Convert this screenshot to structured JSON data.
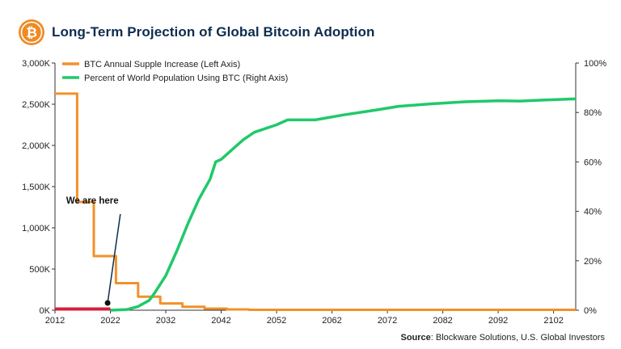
{
  "header": {
    "title": "Long-Term Projection of Global Bitcoin Adoption",
    "logo_icon": "bitcoin-coin-icon"
  },
  "source": {
    "label": "Source",
    "text": ": Blockware Solutions, U.S. Global Investors"
  },
  "chart_data": {
    "type": "line",
    "title": "Long-Term Projection of Global Bitcoin Adoption",
    "legend_position": "top-left",
    "grid": false,
    "x_ticks": [
      "2012",
      "2022",
      "2032",
      "2042",
      "2052",
      "2062",
      "2072",
      "2082",
      "2092",
      "2102"
    ],
    "xlim": [
      2012,
      2106
    ],
    "y_left": {
      "ticks": [
        "0K",
        "500K",
        "1,000K",
        "1,500K",
        "2,000K",
        "2,500K",
        "3,000K"
      ],
      "lim": [
        0,
        3000
      ]
    },
    "y_right": {
      "ticks": [
        "0%",
        "20%",
        "40%",
        "60%",
        "80%",
        "100%"
      ],
      "lim": [
        0,
        100
      ]
    },
    "annotation": {
      "text": "We are here",
      "x": 2021.5
    },
    "colors": {
      "supply": "#f2912a",
      "adoption": "#1fc96a",
      "actual": "#d81e3a",
      "axis": "#333333",
      "title": "#0d2d4f"
    },
    "series": [
      {
        "name": "BTC Annual Supple Increase (Left Axis)",
        "axis": "left",
        "kind": "step",
        "points": [
          [
            2012,
            2628
          ],
          [
            2016,
            2628
          ],
          [
            2016,
            1314
          ],
          [
            2019,
            1314
          ],
          [
            2019,
            657
          ],
          [
            2023,
            657
          ],
          [
            2023,
            328
          ],
          [
            2027,
            328
          ],
          [
            2027,
            164
          ],
          [
            2031,
            164
          ],
          [
            2031,
            82
          ],
          [
            2035,
            82
          ],
          [
            2035,
            41
          ],
          [
            2039,
            41
          ],
          [
            2039,
            20
          ],
          [
            2043,
            20
          ],
          [
            2043,
            10
          ],
          [
            2047,
            10
          ],
          [
            2047,
            5
          ],
          [
            2106,
            5
          ]
        ]
      },
      {
        "name": "Percent of World Population Using BTC (Right Axis)",
        "axis": "right",
        "points": [
          [
            2022,
            0
          ],
          [
            2025,
            0.3
          ],
          [
            2027,
            1.5
          ],
          [
            2029,
            4
          ],
          [
            2030,
            7
          ],
          [
            2032,
            14
          ],
          [
            2034,
            24
          ],
          [
            2036,
            35
          ],
          [
            2038,
            45
          ],
          [
            2040,
            53
          ],
          [
            2041,
            60
          ],
          [
            2042,
            61
          ],
          [
            2044,
            65
          ],
          [
            2046,
            69
          ],
          [
            2048,
            72
          ],
          [
            2052,
            75
          ],
          [
            2054,
            77
          ],
          [
            2059,
            77
          ],
          [
            2064,
            79
          ],
          [
            2070,
            81
          ],
          [
            2074,
            82.5
          ],
          [
            2080,
            83.5
          ],
          [
            2086,
            84.3
          ],
          [
            2092,
            84.7
          ],
          [
            2096,
            84.6
          ],
          [
            2100,
            85
          ],
          [
            2106,
            85.5
          ]
        ]
      },
      {
        "name": "",
        "axis": "left",
        "points": [
          [
            2012,
            15
          ],
          [
            2022,
            15
          ]
        ]
      }
    ]
  }
}
